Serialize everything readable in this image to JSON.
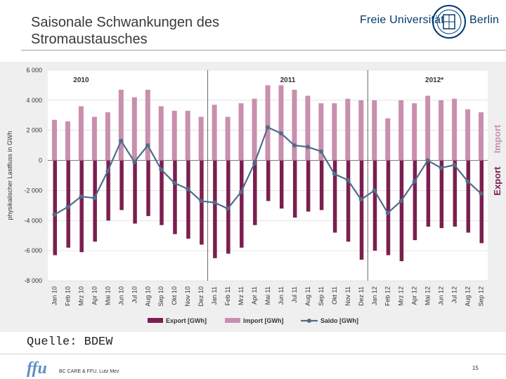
{
  "header": {
    "title": "Saisonale Schwankungen des Stromaustausches",
    "logo_left": "Freie Universität",
    "logo_right": "Berlin"
  },
  "source": "Quelle: BDEW",
  "footer": {
    "logo": "ffu",
    "text": "BC CARE & FFU. Lutz Mez",
    "page": "15"
  },
  "colors": {
    "export": "#7b1f4f",
    "import": "#c98fae",
    "saldo": "#4f6d8a"
  },
  "chart_data": {
    "type": "bar",
    "ylabel": "physikalischer Lastfluss in GWh",
    "ylim": [
      -8000,
      6000
    ],
    "yticks": [
      6000,
      4000,
      2000,
      0,
      -2000,
      -4000,
      -6000,
      -8000
    ],
    "ytick_labels": [
      "6 000",
      "4 000",
      "2 000",
      "0",
      "-2 000",
      "-4 000",
      "-6 000",
      "-8 000"
    ],
    "year_labels": [
      "2010",
      "2011",
      "2012*"
    ],
    "side_labels": {
      "import": "Import",
      "export": "Export"
    },
    "categories": [
      "Jan 10",
      "Feb 10",
      "Mrz 10",
      "Apr 10",
      "Mai 10",
      "Jun 10",
      "Jul 10",
      "Aug 10",
      "Sep 10",
      "Okt 10",
      "Nov 10",
      "Dez 10",
      "Jan 11",
      "Feb 11",
      "Mrz 11",
      "Apr 11",
      "Mai 11",
      "Jun 11",
      "Jul 11",
      "Aug 11",
      "Sep 11",
      "Okt 11",
      "Nov 11",
      "Dez 11",
      "Jan 12",
      "Feb 12",
      "Mrz 12",
      "Apr 12",
      "Mai 12",
      "Jun 12",
      "Jul 12",
      "Aug 12",
      "Sep 12"
    ],
    "series": [
      {
        "name": "Export [GWh]",
        "kind": "bar",
        "values": [
          -6300,
          -5800,
          -6100,
          -5400,
          -4000,
          -3300,
          -4200,
          -3700,
          -4300,
          -4900,
          -5200,
          -5600,
          -6500,
          -6200,
          -5800,
          -4300,
          -2700,
          -3200,
          -3800,
          -3400,
          -3300,
          -4800,
          -5400,
          -6600,
          -6000,
          -6300,
          -6700,
          -5300,
          -4400,
          -4500,
          -4400,
          -4800,
          -5500
        ]
      },
      {
        "name": "Import [GWh]",
        "kind": "bar",
        "values": [
          2700,
          2600,
          3600,
          2900,
          3200,
          4700,
          4200,
          4700,
          3600,
          3300,
          3300,
          2900,
          3700,
          2900,
          3800,
          4100,
          5000,
          5000,
          4700,
          4300,
          3800,
          3800,
          4100,
          4000,
          4000,
          2800,
          4000,
          3800,
          4300,
          4000,
          4100,
          3400,
          3200
        ]
      },
      {
        "name": "Saldo [GWh]",
        "kind": "line",
        "values": [
          -3600,
          -3100,
          -2400,
          -2500,
          -700,
          1300,
          -100,
          1000,
          -600,
          -1500,
          -1900,
          -2700,
          -2800,
          -3200,
          -2100,
          -200,
          2200,
          1800,
          1000,
          900,
          600,
          -900,
          -1300,
          -2600,
          -2000,
          -3500,
          -2700,
          -1400,
          0,
          -500,
          -300,
          -1400,
          -2200
        ]
      }
    ],
    "legend_position": "bottom"
  }
}
